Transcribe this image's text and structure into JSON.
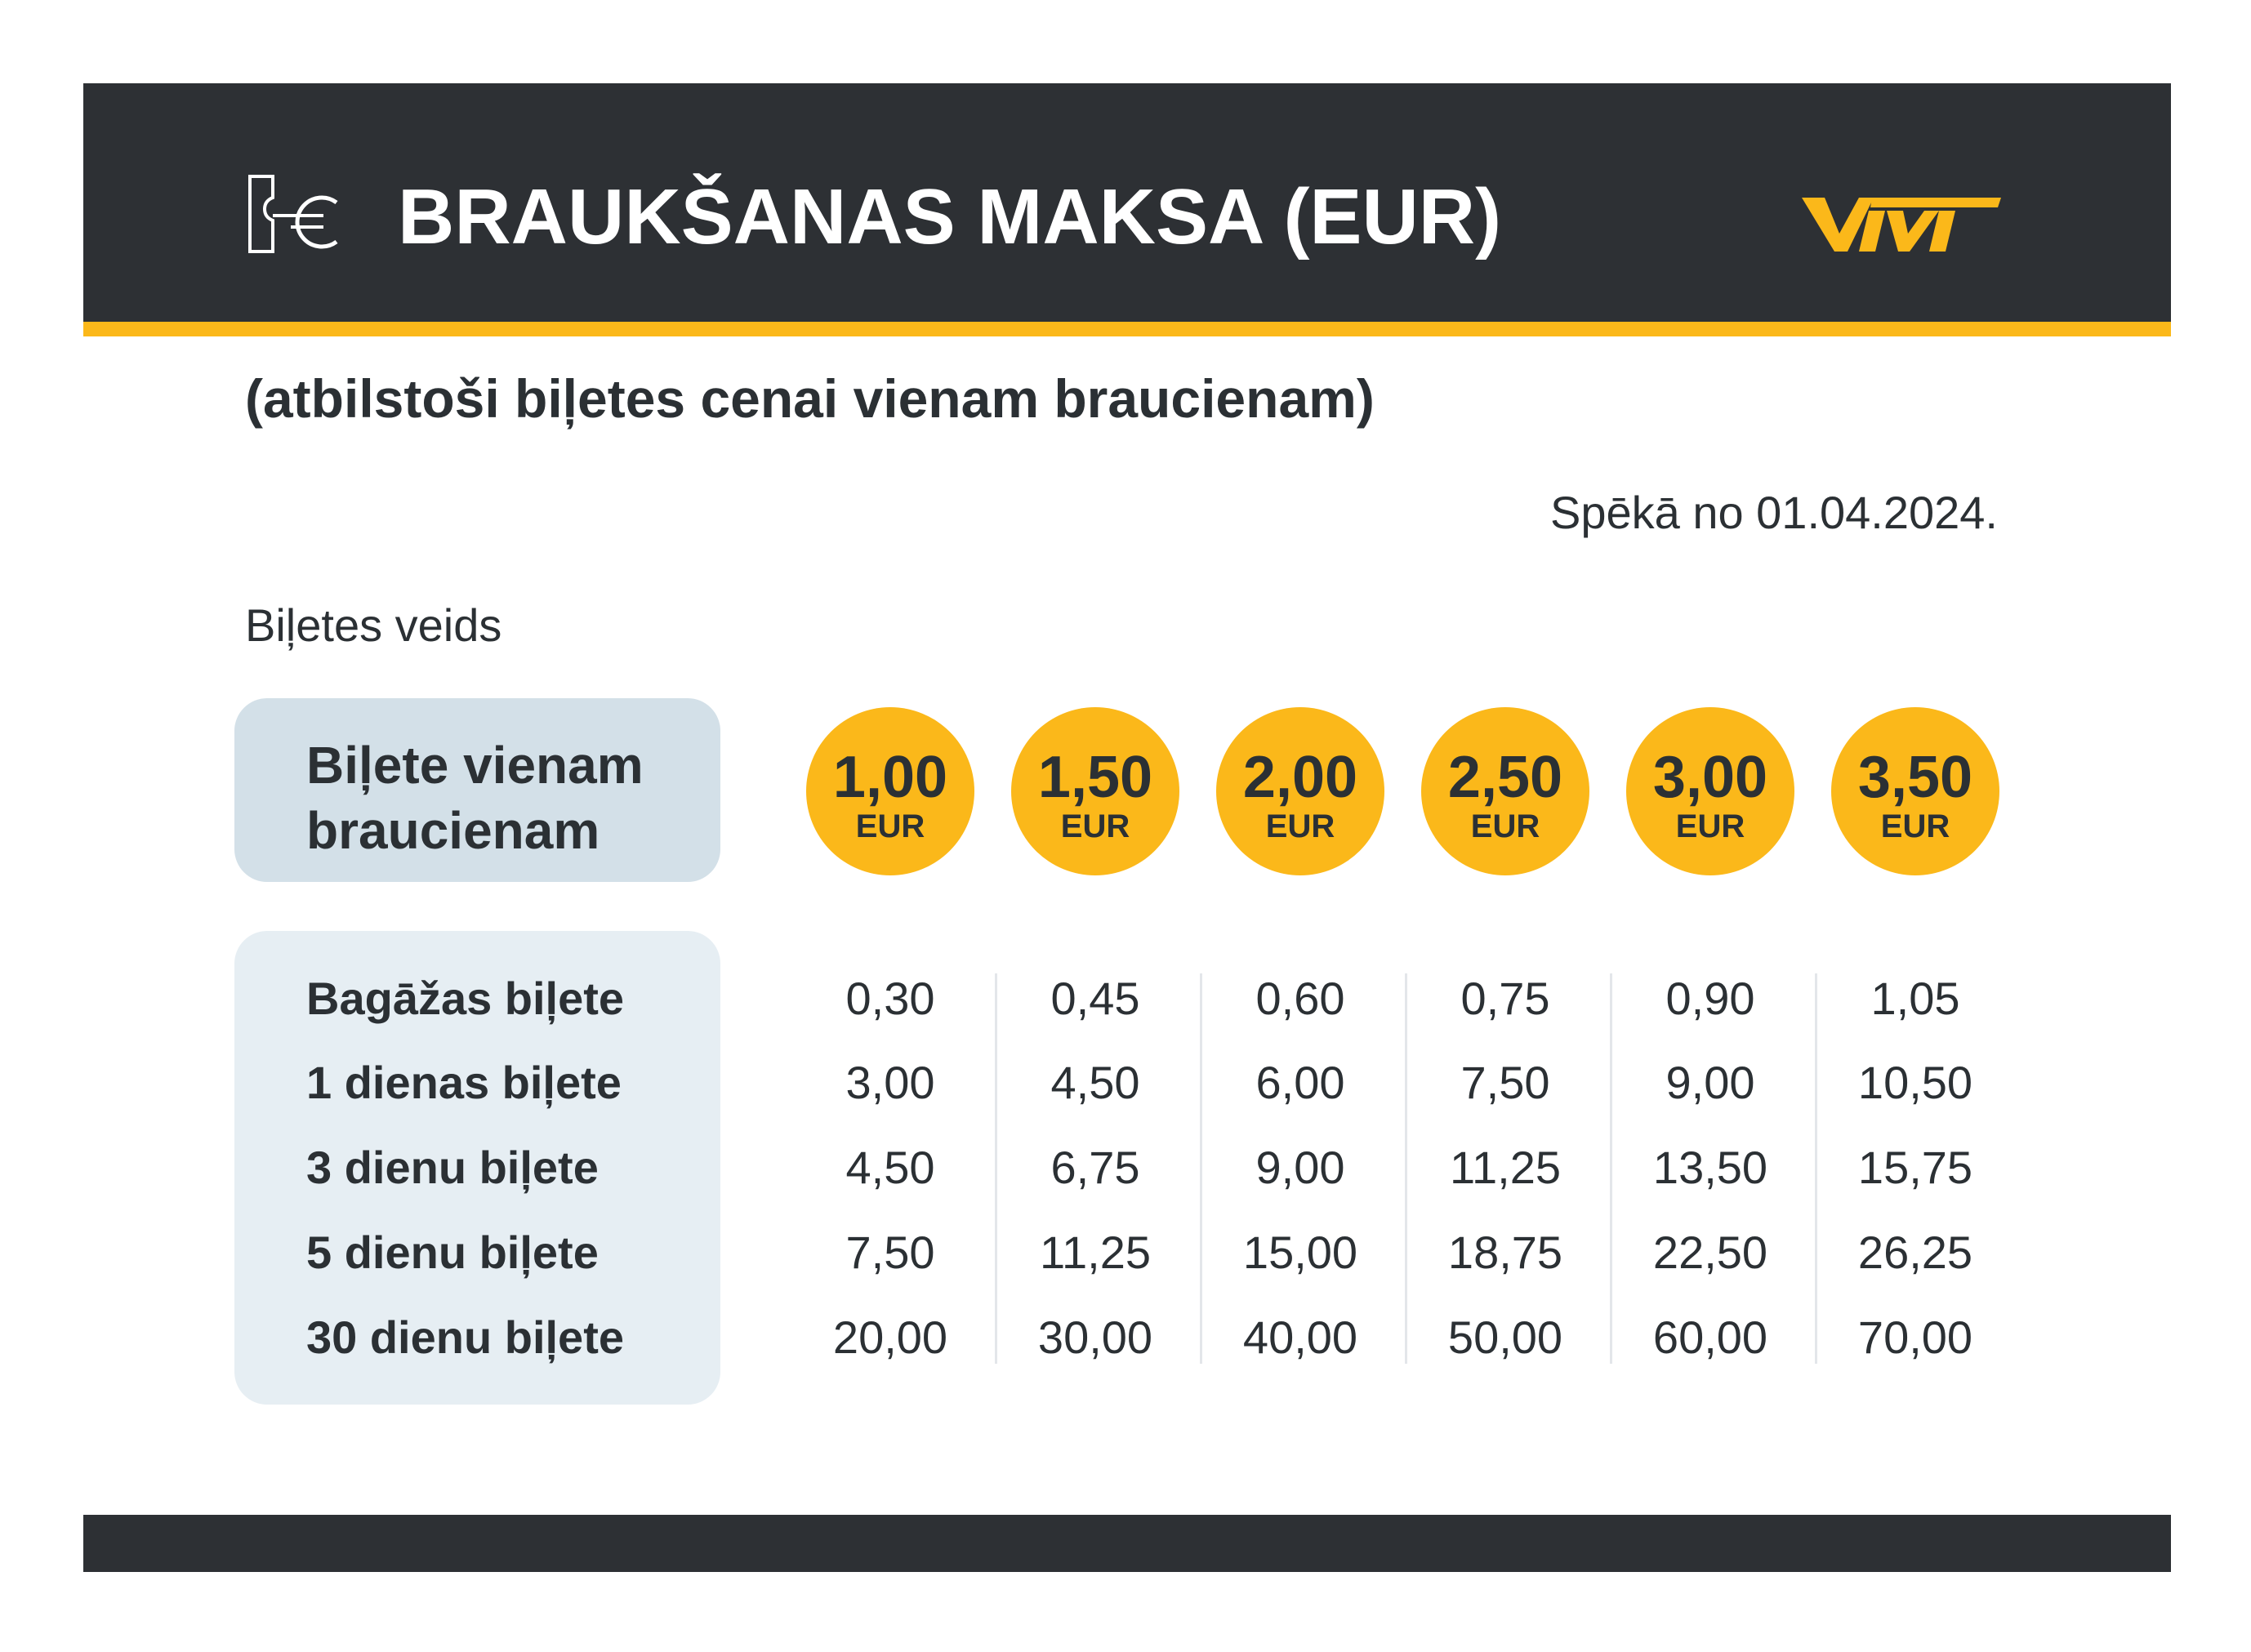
{
  "header": {
    "title": "BRAUKŠANAS MAKSA (EUR)",
    "icon": "ticket-euro-icon",
    "logo_text": "VIVI",
    "bg_color": "#2d3034",
    "accent_color": "#fbb81a"
  },
  "subtitle": "(atbilstoši biļetes cenai vienam braucienam)",
  "effective_date": "Spēkā no 01.04.2024.",
  "ticket_type_caption": "Biļetes veids",
  "single_ticket": {
    "label": "Biļete vienam\nbraucienam",
    "prices": [
      {
        "value": "1,00",
        "unit": "EUR"
      },
      {
        "value": "1,50",
        "unit": "EUR"
      },
      {
        "value": "2,00",
        "unit": "EUR"
      },
      {
        "value": "2,50",
        "unit": "EUR"
      },
      {
        "value": "3,00",
        "unit": "EUR"
      },
      {
        "value": "3,50",
        "unit": "EUR"
      }
    ]
  },
  "rows": [
    {
      "label": "Bagāžas biļete",
      "values": [
        "0,30",
        "0,45",
        "0,60",
        "0,75",
        "0,90",
        "1,05"
      ]
    },
    {
      "label": "1 dienas biļete",
      "values": [
        "3,00",
        "4,50",
        "6,00",
        "7,50",
        "9,00",
        "10,50"
      ]
    },
    {
      "label": "3 dienu biļete",
      "values": [
        "4,50",
        "6,75",
        "9,00",
        "11,25",
        "13,50",
        "15,75"
      ]
    },
    {
      "label": "5 dienu biļete",
      "values": [
        "7,50",
        "11,25",
        "15,00",
        "18,75",
        "22,50",
        "26,25"
      ]
    },
    {
      "label": "30 dienu biļete",
      "values": [
        "20,00",
        "30,00",
        "40,00",
        "50,00",
        "60,00",
        "70,00"
      ]
    }
  ]
}
